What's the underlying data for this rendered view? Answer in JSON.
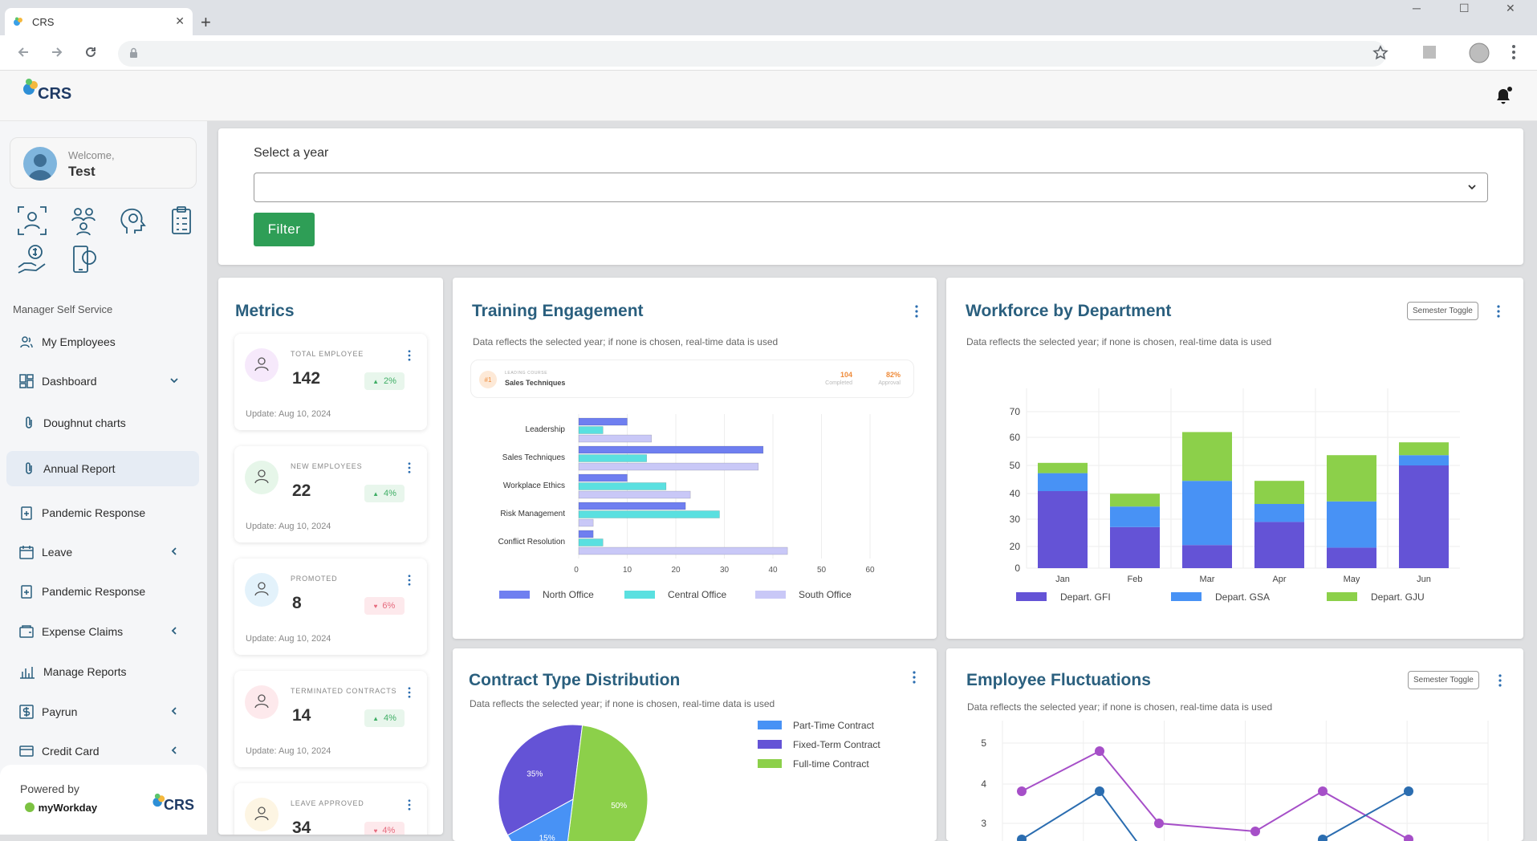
{
  "browser": {
    "tab_title": "CRS",
    "new_tab": "+",
    "tab_close": "✕",
    "minimize": "─",
    "maximize": "☐",
    "close": "✕"
  },
  "app": {
    "logo": "CRS"
  },
  "sidebar": {
    "welcome": "Welcome,",
    "user": "Test",
    "section": "Manager Self Service",
    "items": [
      {
        "label": "My Employees"
      },
      {
        "label": "Dashboard",
        "chevron": "down"
      },
      {
        "label": "Doughnut charts"
      },
      {
        "label": "Annual Report"
      },
      {
        "label": "Pandemic Response"
      },
      {
        "label": "Leave",
        "chevron": "left"
      },
      {
        "label": "Pandemic Response"
      },
      {
        "label": "Expense Claims",
        "chevron": "left"
      },
      {
        "label": "Manage Reports"
      },
      {
        "label": "Payrun",
        "chevron": "left"
      },
      {
        "label": "Credit Card",
        "chevron": "left"
      }
    ],
    "powered_by": "Powered by",
    "partner": "myWorkday",
    "brand": "CRS"
  },
  "filter": {
    "label": "Select a year",
    "select_value": "",
    "button": "Filter"
  },
  "metrics": {
    "title": "Metrics",
    "cards": [
      {
        "label": "TOTAL EMPLOYEE",
        "value": "142",
        "change": "2%",
        "trend": "up",
        "updated": "Update: Aug 10, 2024",
        "color": "#f6e9fb"
      },
      {
        "label": "NEW EMPLOYEES",
        "value": "22",
        "change": "4%",
        "trend": "up",
        "updated": "Update: Aug 10, 2024",
        "color": "#e6f6e9"
      },
      {
        "label": "PROMOTED",
        "value": "8",
        "change": "6%",
        "trend": "down",
        "updated": "Update: Aug 10, 2024",
        "color": "#e3f2fb"
      },
      {
        "label": "TERMINATED CONTRACTS",
        "value": "14",
        "change": "4%",
        "trend": "up",
        "updated": "Update: Aug 10, 2024",
        "color": "#fde9ec"
      },
      {
        "label": "LEAVE APPROVED",
        "value": "34",
        "change": "4%",
        "trend": "down",
        "updated": "",
        "color": "#fdf5e3"
      }
    ]
  },
  "note": "Data reflects the selected year; if none is chosen, real-time data is used",
  "training": {
    "title": "Training Engagement",
    "course": {
      "rank": "#1",
      "caption": "LEADING COURSE",
      "name": "Sales Techniques",
      "completed": "104",
      "completed_label": "Completed",
      "approval": "82%",
      "approval_label": "Approval"
    }
  },
  "workforce": {
    "title": "Workforce by Department",
    "toggle": "Semester Toggle"
  },
  "contract": {
    "title": "Contract Type Distribution"
  },
  "fluctuations": {
    "title": "Employee Fluctuations",
    "toggle": "Semester Toggle"
  },
  "chart_data": [
    {
      "type": "bar",
      "orientation": "horizontal",
      "categories": [
        "Leadership",
        "Sales Techniques",
        "Workplace Ethics",
        "Risk Management",
        "Conflict Resolution"
      ],
      "series": [
        {
          "name": "North Office",
          "color": "#6f7ff0",
          "values": [
            10,
            38,
            10,
            22,
            3
          ]
        },
        {
          "name": "Central Office",
          "color": "#5ae0e0",
          "values": [
            5,
            14,
            18,
            29,
            5
          ]
        },
        {
          "name": "South Office",
          "color": "#c9c8f7",
          "values": [
            15,
            37,
            23,
            3,
            43
          ]
        }
      ],
      "xticks": [
        0,
        10,
        20,
        30,
        40,
        50,
        60
      ],
      "xlim": [
        0,
        60
      ]
    },
    {
      "type": "bar",
      "stacked": true,
      "categories": [
        "Jan",
        "Feb",
        "Mar",
        "Apr",
        "May",
        "Jun"
      ],
      "series": [
        {
          "name": "Depart. GFI",
          "color": "#6453d6",
          "values": [
            30,
            16,
            9,
            18,
            8,
            40
          ]
        },
        {
          "name": "Depart. GSA",
          "color": "#4892f5",
          "values": [
            7,
            8,
            25,
            7,
            18,
            4
          ]
        },
        {
          "name": "Depart. GJU",
          "color": "#8cd04a",
          "values": [
            4,
            5,
            19,
            9,
            18,
            5
          ]
        }
      ],
      "yticks": [
        0,
        20,
        30,
        40,
        50,
        60,
        70
      ],
      "ylim": [
        0,
        70
      ]
    },
    {
      "type": "pie",
      "labels": [
        "Part-Time Contract",
        "Fixed-Term Contract",
        "Full-time Contract"
      ],
      "values": [
        15,
        35,
        50
      ],
      "colors": [
        "#4892f5",
        "#6453d6",
        "#8cd04a"
      ],
      "slice_labels": [
        "15%",
        "35%",
        "50%"
      ]
    },
    {
      "type": "line",
      "yticks": [
        3,
        4,
        5
      ],
      "series": [
        {
          "color": "#a64fc8",
          "values": [
            3.8,
            4.8,
            3,
            2.8,
            3.8,
            2.6
          ]
        },
        {
          "color": "#2b6db0",
          "values": [
            2.6,
            3.8,
            1.8,
            1.8,
            2.6,
            3.8
          ]
        }
      ]
    }
  ]
}
